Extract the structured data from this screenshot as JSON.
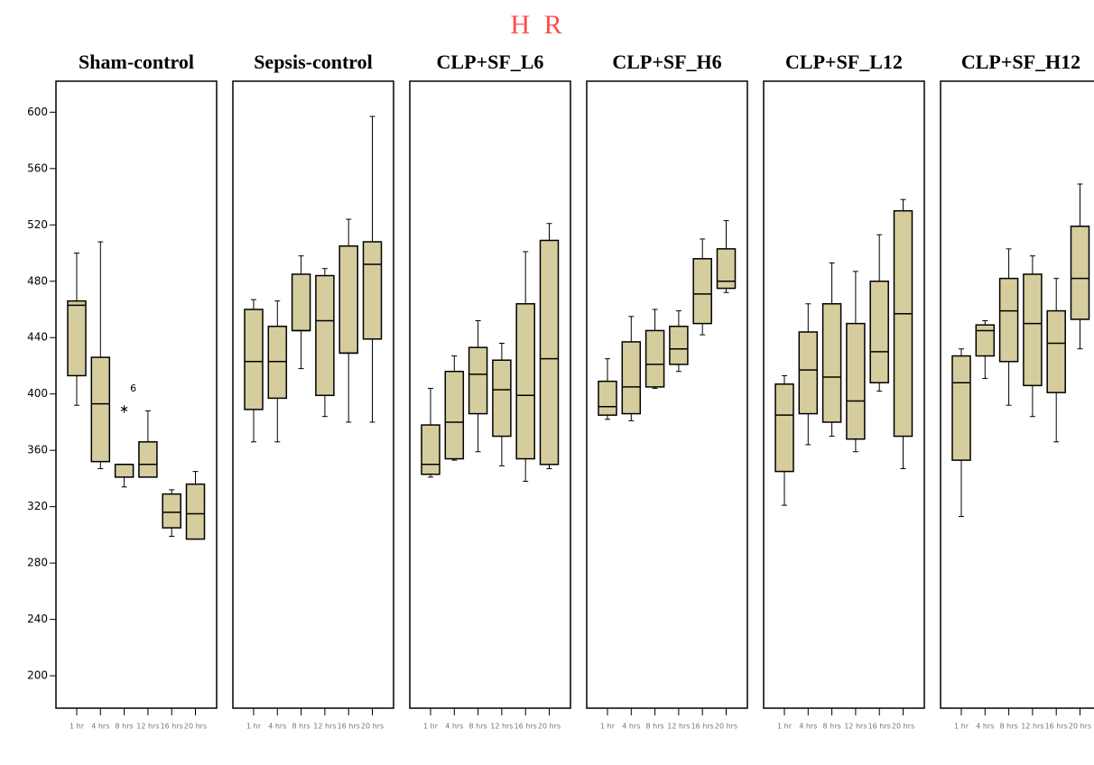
{
  "title": "H R",
  "chart_data": [
    {
      "type": "box",
      "title": "Sham-control",
      "color": "#d5cd9d",
      "categories": [
        "1 hr",
        "4 hrs",
        "8 hrs",
        "12 hrs",
        "16 hrs",
        "20 hrs"
      ],
      "ylim": [
        177,
        622
      ],
      "yticks": [
        200,
        240,
        280,
        320,
        360,
        400,
        440,
        480,
        520,
        560,
        600
      ],
      "boxes": [
        {
          "low": 392,
          "q1": 413,
          "median": 463,
          "q3": 466,
          "high": 500
        },
        {
          "low": 347,
          "q1": 352,
          "median": 393,
          "q3": 426,
          "high": 508
        },
        {
          "low": 334,
          "q1": 341,
          "median": 350,
          "q3": 350,
          "high": 350
        },
        {
          "low": 341,
          "q1": 341,
          "median": 350,
          "q3": 366,
          "high": 388
        },
        {
          "low": 299,
          "q1": 305,
          "median": 316,
          "q3": 329,
          "high": 332
        },
        {
          "low": 297,
          "q1": 297,
          "median": 315,
          "q3": 336,
          "high": 345
        }
      ],
      "outliers": [
        {
          "category": "8 hrs",
          "value": 391,
          "label": "6"
        }
      ]
    },
    {
      "type": "box",
      "title": "Sepsis-control",
      "color": "#d5cd9d",
      "categories": [
        "1 hr",
        "4 hrs",
        "8 hrs",
        "12 hrs",
        "16 hrs",
        "20 hrs"
      ],
      "ylim": [
        177,
        622
      ],
      "boxes": [
        {
          "low": 366,
          "q1": 389,
          "median": 423,
          "q3": 460,
          "high": 467
        },
        {
          "low": 366,
          "q1": 397,
          "median": 423,
          "q3": 448,
          "high": 466
        },
        {
          "low": 418,
          "q1": 445,
          "median": 445,
          "q3": 485,
          "high": 498
        },
        {
          "low": 384,
          "q1": 399,
          "median": 452,
          "q3": 484,
          "high": 489
        },
        {
          "low": 380,
          "q1": 429,
          "median": 429,
          "q3": 505,
          "high": 524
        },
        {
          "low": 380,
          "q1": 439,
          "median": 492,
          "q3": 508,
          "high": 597
        }
      ]
    },
    {
      "type": "box",
      "title": "CLP+SF_L6",
      "color": "#d5cd9d",
      "categories": [
        "1 hr",
        "4 hrs",
        "8 hrs",
        "12 hrs",
        "16 hrs",
        "20 hrs"
      ],
      "ylim": [
        177,
        622
      ],
      "boxes": [
        {
          "low": 341,
          "q1": 343,
          "median": 350,
          "q3": 378,
          "high": 404
        },
        {
          "low": 353,
          "q1": 354,
          "median": 380,
          "q3": 416,
          "high": 427
        },
        {
          "low": 359,
          "q1": 386,
          "median": 414,
          "q3": 433,
          "high": 452
        },
        {
          "low": 349,
          "q1": 370,
          "median": 403,
          "q3": 424,
          "high": 436
        },
        {
          "low": 338,
          "q1": 354,
          "median": 399,
          "q3": 464,
          "high": 501
        },
        {
          "low": 347,
          "q1": 350,
          "median": 425,
          "q3": 509,
          "high": 521
        }
      ]
    },
    {
      "type": "box",
      "title": "CLP+SF_H6",
      "color": "#d5cd9d",
      "categories": [
        "1 hr",
        "4 hrs",
        "8 hrs",
        "12 hrs",
        "16 hrs",
        "20 hrs"
      ],
      "ylim": [
        177,
        622
      ],
      "boxes": [
        {
          "low": 382,
          "q1": 385,
          "median": 391,
          "q3": 409,
          "high": 425
        },
        {
          "low": 381,
          "q1": 386,
          "median": 405,
          "q3": 437,
          "high": 455
        },
        {
          "low": 404,
          "q1": 405,
          "median": 421,
          "q3": 445,
          "high": 460
        },
        {
          "low": 416,
          "q1": 421,
          "median": 432,
          "q3": 448,
          "high": 459
        },
        {
          "low": 442,
          "q1": 450,
          "median": 471,
          "q3": 496,
          "high": 510
        },
        {
          "low": 472,
          "q1": 475,
          "median": 480,
          "q3": 503,
          "high": 523
        }
      ]
    },
    {
      "type": "box",
      "title": "CLP+SF_L12",
      "color": "#d5cd9d",
      "categories": [
        "1 hr",
        "4 hrs",
        "8 hrs",
        "12 hrs",
        "16 hrs",
        "20 hrs"
      ],
      "ylim": [
        177,
        622
      ],
      "boxes": [
        {
          "low": 321,
          "q1": 345,
          "median": 385,
          "q3": 407,
          "high": 413
        },
        {
          "low": 364,
          "q1": 386,
          "median": 417,
          "q3": 444,
          "high": 464
        },
        {
          "low": 370,
          "q1": 380,
          "median": 412,
          "q3": 464,
          "high": 493
        },
        {
          "low": 359,
          "q1": 368,
          "median": 395,
          "q3": 450,
          "high": 487
        },
        {
          "low": 402,
          "q1": 408,
          "median": 430,
          "q3": 480,
          "high": 513
        },
        {
          "low": 347,
          "q1": 370,
          "median": 457,
          "q3": 530,
          "high": 538
        }
      ]
    },
    {
      "type": "box",
      "title": "CLP+SF_H12",
      "color": "#d5cd9d",
      "categories": [
        "1 hr",
        "4 hrs",
        "8 hrs",
        "12 hrs",
        "16 hrs",
        "20 hrs"
      ],
      "ylim": [
        177,
        622
      ],
      "boxes": [
        {
          "low": 313,
          "q1": 353,
          "median": 408,
          "q3": 427,
          "high": 432
        },
        {
          "low": 411,
          "q1": 427,
          "median": 445,
          "q3": 449,
          "high": 452
        },
        {
          "low": 392,
          "q1": 423,
          "median": 459,
          "q3": 482,
          "high": 503
        },
        {
          "low": 384,
          "q1": 406,
          "median": 450,
          "q3": 485,
          "high": 498
        },
        {
          "low": 366,
          "q1": 401,
          "median": 436,
          "q3": 459,
          "high": 482
        },
        {
          "low": 432,
          "q1": 453,
          "median": 482,
          "q3": 519,
          "high": 549
        }
      ]
    }
  ]
}
